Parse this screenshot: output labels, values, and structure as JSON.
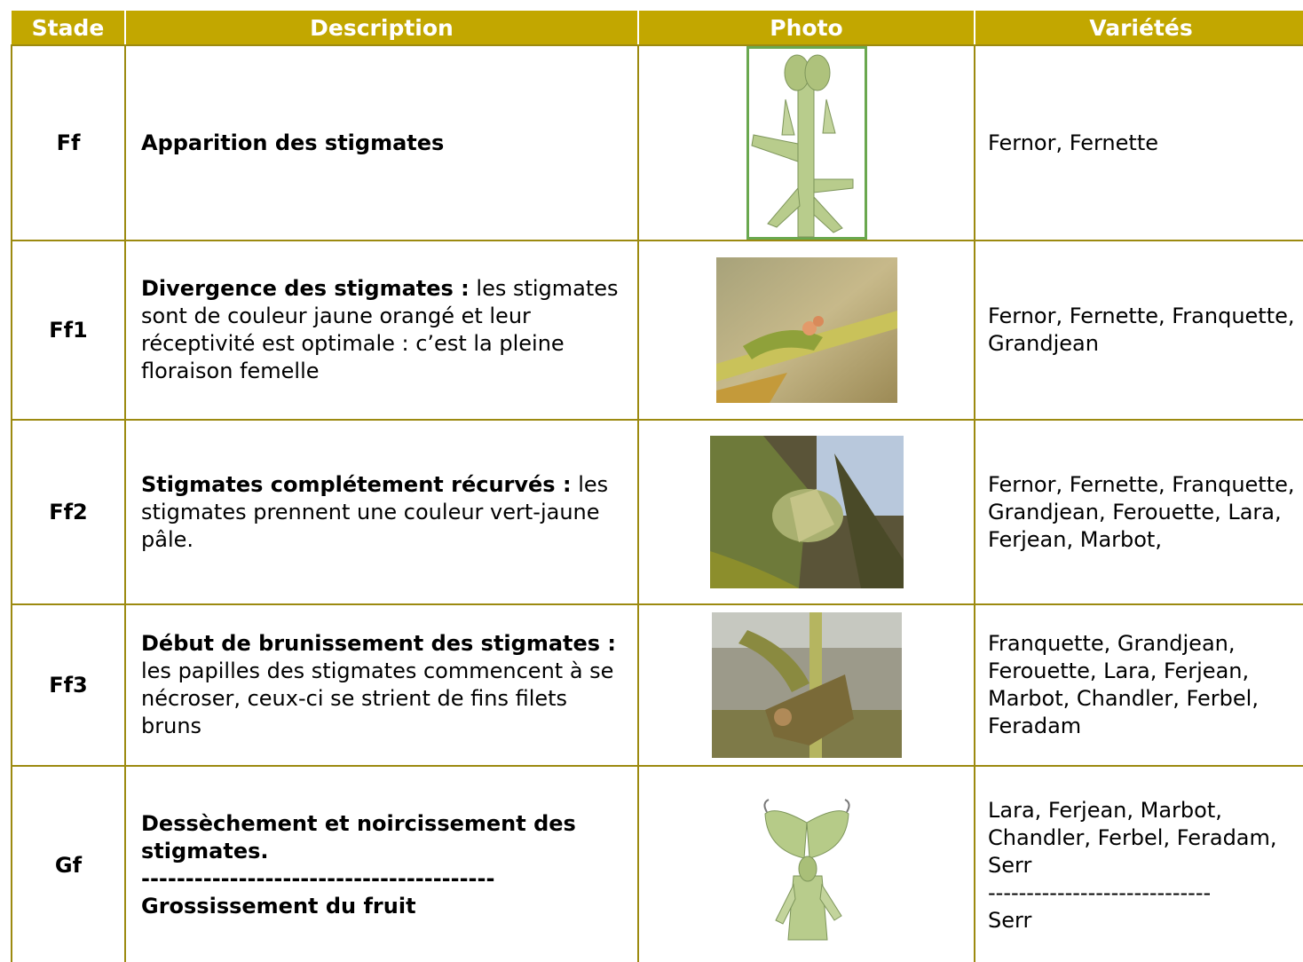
{
  "header": {
    "columns": [
      "Stade",
      "Description",
      "Photo",
      "Variétés"
    ]
  },
  "table": {
    "rows": [
      {
        "stade": "Ff",
        "description": [
          [
            {
              "text": "Apparition des stigmates",
              "bold": true
            }
          ]
        ],
        "varietes": [
          "Fernor, Fernette"
        ]
      },
      {
        "stade": "Ff1",
        "description": [
          [
            {
              "text": "Divergence des stigmates :",
              "bold": true
            },
            {
              "text": "les stigmates sont de couleur jaune orangé et leur réceptivité est optimale : c’est la pleine floraison femelle",
              "bold": false
            }
          ]
        ],
        "varietes": [
          "Fernor, Fernette, Franquette, Grandjean"
        ]
      },
      {
        "stade": "Ff2",
        "description": [
          [
            {
              "text": "Stigmates complétement récurvés :",
              "bold": true
            },
            {
              "text": "les stigmates prennent une couleur vert-jaune pâle.",
              "bold": false
            }
          ]
        ],
        "varietes": [
          "Fernor, Fernette, Franquette, Grandjean, Ferouette, Lara, Ferjean, Marbot,"
        ]
      },
      {
        "stade": "Ff3",
        "description": [
          [
            {
              "text": "Début de brunissement des stigmates :",
              "bold": true
            },
            {
              "text": "les papilles des stigmates commencent à se nécroser, ceux-ci se strient de fins filets bruns",
              "bold": false
            }
          ]
        ],
        "varietes": [
          "Franquette, Grandjean, Ferouette, Lara, Ferjean, Marbot, Chandler, Ferbel, Feradam"
        ]
      },
      {
        "stade": "Gf",
        "description": [
          [
            {
              "text": "Dessèchement et noircissement des stigmates.",
              "bold": true
            }
          ],
          [
            {
              "text": "----------------------------------------",
              "bold": true
            }
          ],
          [
            {
              "text": "Grossissement du fruit",
              "bold": true
            }
          ]
        ],
        "varietes": [
          "Lara, Ferjean, Marbot, Chandler, Ferbel, Feradam, Serr",
          "-----------------------------",
          "Serr"
        ]
      }
    ]
  }
}
